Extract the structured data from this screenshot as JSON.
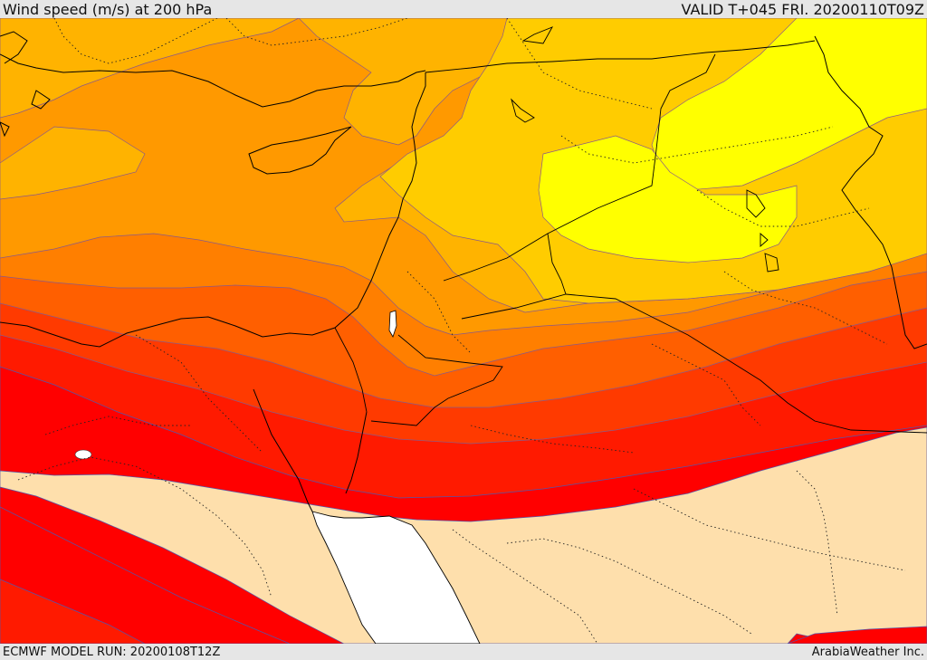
{
  "header": {
    "title": "Wind speed (m/s) at 200 hPa",
    "valid": "VALID T+045 FRI. 20200110T09Z"
  },
  "footer": {
    "model_run": "ECMWF MODEL RUN: 20200108T12Z",
    "credit": "ArabiaWeather Inc."
  },
  "legend_colors": {
    "yellow": "#ffff00",
    "yellow_orange": "#ffcc00",
    "light_orange": "#ffb300",
    "orange": "#ff9900",
    "dark_orange": "#ff7f00",
    "orange_red": "#ff5f00",
    "red_orange": "#ff3a00",
    "red": "#ff1a00",
    "bright_red": "#ff0000",
    "beige": "#fedfac",
    "sea": "#ffffff"
  }
}
